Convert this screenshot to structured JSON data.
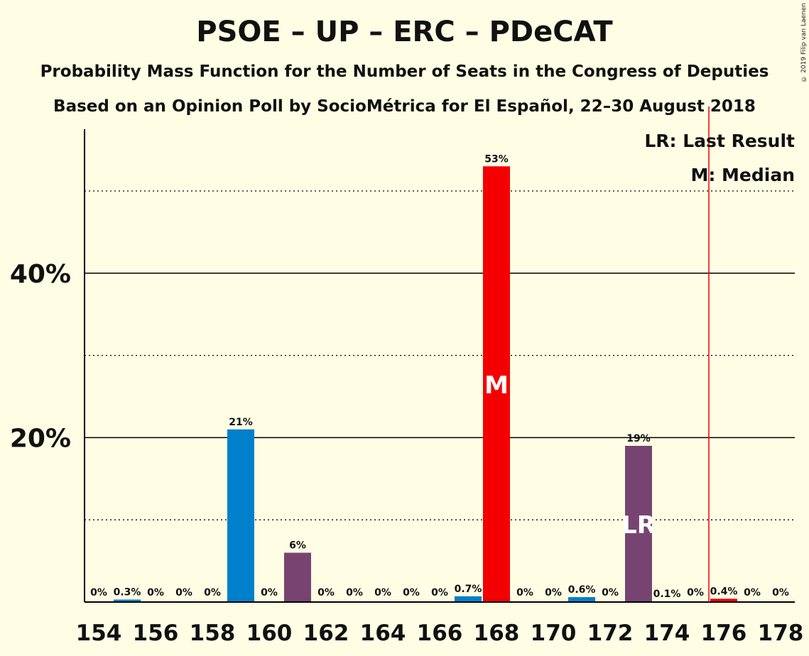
{
  "header": {
    "title": "PSOE – UP – ERC – PDeCAT",
    "subtitle1": "Probability Mass Function for the Number of Seats in the Congress of Deputies",
    "subtitle2": "Based on an Opinion Poll by SocioMétrica for El Español, 22–30 August 2018",
    "copyright": "© 2019 Filip van Laenen"
  },
  "legend": {
    "last_result": "LR: Last Result",
    "median": "M: Median"
  },
  "colors": {
    "background": "#FFFEE4",
    "blue": "#0080CC",
    "red": "#F40000",
    "purple": "#774472",
    "lr_line": "#F40000"
  },
  "chart_data": {
    "type": "bar",
    "x": [
      154,
      155,
      156,
      157,
      158,
      159,
      160,
      161,
      162,
      163,
      164,
      165,
      166,
      167,
      168,
      169,
      170,
      171,
      172,
      173,
      174,
      175,
      176,
      177,
      178
    ],
    "values": [
      0,
      0.3,
      0,
      0,
      0,
      21,
      0,
      6,
      0,
      0,
      0,
      0,
      0,
      0.7,
      53,
      0,
      0,
      0.6,
      0,
      19,
      0.1,
      0,
      0.4,
      0,
      0
    ],
    "value_labels": [
      "0%",
      "0.3%",
      "0%",
      "0%",
      "0%",
      "21%",
      "0%",
      "6%",
      "0%",
      "0%",
      "0%",
      "0%",
      "0%",
      "0.7%",
      "53%",
      "0%",
      "0%",
      "0.6%",
      "0%",
      "19%",
      "0.1%",
      "0%",
      "0.4%",
      "0%",
      "0%"
    ],
    "bar_colors": [
      "blue",
      "blue",
      "blue",
      "blue",
      "blue",
      "blue",
      "blue",
      "purple",
      "blue",
      "blue",
      "blue",
      "blue",
      "blue",
      "blue",
      "red",
      "blue",
      "blue",
      "blue",
      "blue",
      "purple",
      "blue",
      "blue",
      "red",
      "blue",
      "blue"
    ],
    "x_ticks": [
      "154",
      "156",
      "158",
      "160",
      "162",
      "164",
      "166",
      "168",
      "170",
      "172",
      "174",
      "176",
      "178"
    ],
    "y_ticks": [
      "20%",
      "40%"
    ],
    "ylim": [
      0,
      57
    ],
    "major_gridlines": [
      20,
      40
    ],
    "minor_gridlines": [
      10,
      30,
      50
    ],
    "median_seat": 168,
    "median_label": "M",
    "last_result_seat": 173,
    "last_result_label": "LR",
    "majority_line_seat": 176
  }
}
